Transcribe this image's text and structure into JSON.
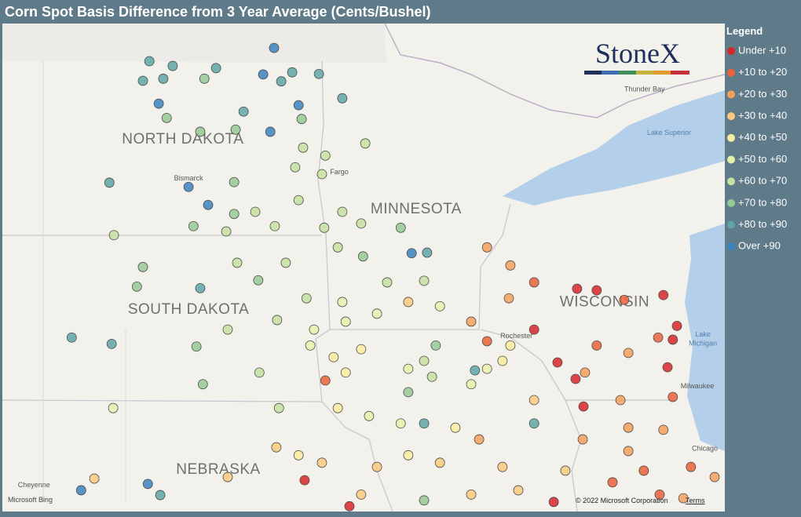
{
  "title": "Corn Spot Basis Difference from 3 Year Average (Cents/Bushel)",
  "legend": {
    "title": "Legend",
    "items": [
      {
        "label": "Under +10",
        "color": "#d7262a"
      },
      {
        "label": "+10 to +20",
        "color": "#e9623b"
      },
      {
        "label": "+20 to +30",
        "color": "#f4a05a"
      },
      {
        "label": "+30 to +40",
        "color": "#fbc97e"
      },
      {
        "label": "+40 to +50",
        "color": "#f8ec9e"
      },
      {
        "label": "+50 to +60",
        "color": "#e6f1aa"
      },
      {
        "label": "+60 to +70",
        "color": "#c4e1a0"
      },
      {
        "label": "+70 to +80",
        "color": "#94c994"
      },
      {
        "label": "+80 to +90",
        "color": "#5ea6a6"
      },
      {
        "label": "Over +90",
        "color": "#3b83be"
      }
    ]
  },
  "logo": "StoneX",
  "attribution": {
    "provider": "Microsoft Bing",
    "copyright": "© 2022 Microsoft Corporation",
    "terms": "Terms"
  },
  "map": {
    "lon_range": [
      -105.74,
      -86.57
    ],
    "lat_range": [
      49.9,
      40.7
    ],
    "labels": [
      {
        "text": "NORTH DAKOTA",
        "lon": -100.95,
        "lat": 47.64,
        "kind": "state"
      },
      {
        "text": "SOUTH DAKOTA",
        "lon": -100.8,
        "lat": 44.43,
        "kind": "state"
      },
      {
        "text": "MINNESOTA",
        "lon": -94.76,
        "lat": 46.32,
        "kind": "state"
      },
      {
        "text": "WISCONSIN",
        "lon": -89.76,
        "lat": 44.57,
        "kind": "state"
      },
      {
        "text": "NEBRASKA",
        "lon": -100.01,
        "lat": 41.41,
        "kind": "state"
      },
      {
        "text": "Bismarck",
        "lon": -100.8,
        "lat": 46.94,
        "kind": "city"
      },
      {
        "text": "Fargo",
        "lon": -96.8,
        "lat": 47.06,
        "kind": "city"
      },
      {
        "text": "Thunder Bay",
        "lon": -88.7,
        "lat": 48.62,
        "kind": "city"
      },
      {
        "text": "Rochester",
        "lon": -92.1,
        "lat": 43.97,
        "kind": "city"
      },
      {
        "text": "Milwaukee",
        "lon": -87.3,
        "lat": 43.02,
        "kind": "city"
      },
      {
        "text": "Chicago",
        "lon": -87.1,
        "lat": 41.85,
        "kind": "city"
      },
      {
        "text": "Cheyenne",
        "lon": -104.9,
        "lat": 41.16,
        "kind": "city"
      },
      {
        "text": "Lake Superior",
        "lon": -88.05,
        "lat": 47.8,
        "kind": "water"
      },
      {
        "text": "Lake",
        "lon": -87.15,
        "lat": 44.0,
        "kind": "water"
      },
      {
        "text": "Michigan",
        "lon": -87.15,
        "lat": 43.83,
        "kind": "water"
      }
    ],
    "points": [
      {
        "lon": -101.84,
        "lat": 49.19,
        "bin": 8
      },
      {
        "lon": -101.22,
        "lat": 49.1,
        "bin": 8
      },
      {
        "lon": -102.01,
        "lat": 48.82,
        "bin": 8
      },
      {
        "lon": -101.47,
        "lat": 48.86,
        "bin": 8
      },
      {
        "lon": -101.59,
        "lat": 48.39,
        "bin": 9
      },
      {
        "lon": -100.38,
        "lat": 48.86,
        "bin": 7
      },
      {
        "lon": -100.07,
        "lat": 49.06,
        "bin": 8
      },
      {
        "lon": -98.53,
        "lat": 49.44,
        "bin": 9
      },
      {
        "lon": -98.82,
        "lat": 48.94,
        "bin": 9
      },
      {
        "lon": -98.34,
        "lat": 48.81,
        "bin": 8
      },
      {
        "lon": -98.05,
        "lat": 48.98,
        "bin": 8
      },
      {
        "lon": -97.34,
        "lat": 48.95,
        "bin": 8
      },
      {
        "lon": -97.88,
        "lat": 48.36,
        "bin": 9
      },
      {
        "lon": -96.72,
        "lat": 48.49,
        "bin": 8
      },
      {
        "lon": -99.34,
        "lat": 48.24,
        "bin": 8
      },
      {
        "lon": -98.63,
        "lat": 47.86,
        "bin": 9
      },
      {
        "lon": -101.38,
        "lat": 48.12,
        "bin": 7
      },
      {
        "lon": -100.49,
        "lat": 47.86,
        "bin": 7
      },
      {
        "lon": -99.55,
        "lat": 47.9,
        "bin": 7
      },
      {
        "lon": -97.8,
        "lat": 48.1,
        "bin": 7
      },
      {
        "lon": -96.11,
        "lat": 47.64,
        "bin": 6
      },
      {
        "lon": -97.76,
        "lat": 47.56,
        "bin": 6
      },
      {
        "lon": -97.17,
        "lat": 47.41,
        "bin": 6
      },
      {
        "lon": -97.97,
        "lat": 47.19,
        "bin": 6
      },
      {
        "lon": -97.26,
        "lat": 47.06,
        "bin": 6
      },
      {
        "lon": -102.9,
        "lat": 46.9,
        "bin": 8
      },
      {
        "lon": -100.8,
        "lat": 46.82,
        "bin": 9
      },
      {
        "lon": -99.59,
        "lat": 46.91,
        "bin": 7
      },
      {
        "lon": -100.28,
        "lat": 46.48,
        "bin": 9
      },
      {
        "lon": -99.59,
        "lat": 46.31,
        "bin": 7
      },
      {
        "lon": -99.03,
        "lat": 46.35,
        "bin": 6
      },
      {
        "lon": -97.88,
        "lat": 46.57,
        "bin": 6
      },
      {
        "lon": -96.72,
        "lat": 46.35,
        "bin": 6
      },
      {
        "lon": -100.67,
        "lat": 46.08,
        "bin": 7
      },
      {
        "lon": -99.8,
        "lat": 45.98,
        "bin": 6
      },
      {
        "lon": -98.51,
        "lat": 46.08,
        "bin": 6
      },
      {
        "lon": -97.2,
        "lat": 46.05,
        "bin": 6
      },
      {
        "lon": -96.22,
        "lat": 46.13,
        "bin": 6
      },
      {
        "lon": -95.17,
        "lat": 46.05,
        "bin": 7
      },
      {
        "lon": -102.78,
        "lat": 45.91,
        "bin": 6
      },
      {
        "lon": -102.01,
        "lat": 45.31,
        "bin": 7
      },
      {
        "lon": -99.51,
        "lat": 45.39,
        "bin": 6
      },
      {
        "lon": -98.22,
        "lat": 45.39,
        "bin": 6
      },
      {
        "lon": -96.84,
        "lat": 45.68,
        "bin": 6
      },
      {
        "lon": -96.17,
        "lat": 45.51,
        "bin": 7
      },
      {
        "lon": -94.88,
        "lat": 45.57,
        "bin": 9
      },
      {
        "lon": -94.47,
        "lat": 45.58,
        "bin": 8
      },
      {
        "lon": -102.17,
        "lat": 44.94,
        "bin": 7
      },
      {
        "lon": -100.49,
        "lat": 44.91,
        "bin": 8
      },
      {
        "lon": -98.95,
        "lat": 45.06,
        "bin": 7
      },
      {
        "lon": -97.67,
        "lat": 44.72,
        "bin": 6
      },
      {
        "lon": -96.72,
        "lat": 44.65,
        "bin": 5
      },
      {
        "lon": -95.53,
        "lat": 45.02,
        "bin": 6
      },
      {
        "lon": -94.55,
        "lat": 45.05,
        "bin": 6
      },
      {
        "lon": -103.9,
        "lat": 43.98,
        "bin": 8
      },
      {
        "lon": -102.84,
        "lat": 43.86,
        "bin": 8
      },
      {
        "lon": -100.59,
        "lat": 43.81,
        "bin": 7
      },
      {
        "lon": -99.76,
        "lat": 44.13,
        "bin": 6
      },
      {
        "lon": -98.45,
        "lat": 44.31,
        "bin": 6
      },
      {
        "lon": -97.47,
        "lat": 44.13,
        "bin": 5
      },
      {
        "lon": -96.63,
        "lat": 44.28,
        "bin": 5
      },
      {
        "lon": -95.8,
        "lat": 44.43,
        "bin": 5
      },
      {
        "lon": -94.97,
        "lat": 44.65,
        "bin": 3
      },
      {
        "lon": -94.13,
        "lat": 44.57,
        "bin": 5
      },
      {
        "lon": -93.3,
        "lat": 44.28,
        "bin": 2
      },
      {
        "lon": -92.88,
        "lat": 43.91,
        "bin": 1
      },
      {
        "lon": -93.2,
        "lat": 43.36,
        "bin": 8
      },
      {
        "lon": -94.24,
        "lat": 43.83,
        "bin": 7
      },
      {
        "lon": -96.22,
        "lat": 43.76,
        "bin": 4
      },
      {
        "lon": -94.97,
        "lat": 43.39,
        "bin": 5
      },
      {
        "lon": -94.34,
        "lat": 43.24,
        "bin": 6
      },
      {
        "lon": -92.47,
        "lat": 43.54,
        "bin": 4
      },
      {
        "lon": -100.42,
        "lat": 43.1,
        "bin": 7
      },
      {
        "lon": -98.92,
        "lat": 43.32,
        "bin": 6
      },
      {
        "lon": -97.17,
        "lat": 43.17,
        "bin": 1
      },
      {
        "lon": -96.63,
        "lat": 43.32,
        "bin": 4
      },
      {
        "lon": -94.97,
        "lat": 42.95,
        "bin": 7
      },
      {
        "lon": -93.3,
        "lat": 43.1,
        "bin": 5
      },
      {
        "lon": -91.63,
        "lat": 42.8,
        "bin": 3
      },
      {
        "lon": -102.8,
        "lat": 42.65,
        "bin": 5
      },
      {
        "lon": -98.4,
        "lat": 42.65,
        "bin": 6
      },
      {
        "lon": -96.84,
        "lat": 42.65,
        "bin": 4
      },
      {
        "lon": -95.17,
        "lat": 42.36,
        "bin": 5
      },
      {
        "lon": -94.55,
        "lat": 42.36,
        "bin": 8
      },
      {
        "lon": -93.09,
        "lat": 42.06,
        "bin": 2
      },
      {
        "lon": -91.63,
        "lat": 42.36,
        "bin": 8
      },
      {
        "lon": -90.34,
        "lat": 42.06,
        "bin": 2
      },
      {
        "lon": -98.47,
        "lat": 41.91,
        "bin": 3
      },
      {
        "lon": -97.26,
        "lat": 41.62,
        "bin": 3
      },
      {
        "lon": -95.8,
        "lat": 41.54,
        "bin": 3
      },
      {
        "lon": -94.13,
        "lat": 41.62,
        "bin": 3
      },
      {
        "lon": -92.47,
        "lat": 41.54,
        "bin": 3
      },
      {
        "lon": -90.8,
        "lat": 41.47,
        "bin": 3
      },
      {
        "lon": -89.13,
        "lat": 41.84,
        "bin": 2
      },
      {
        "lon": -88.72,
        "lat": 41.47,
        "bin": 1
      },
      {
        "lon": -87.47,
        "lat": 41.54,
        "bin": 1
      },
      {
        "lon": -86.84,
        "lat": 41.35,
        "bin": 2
      },
      {
        "lon": -99.76,
        "lat": 41.35,
        "bin": 3
      },
      {
        "lon": -97.72,
        "lat": 41.29,
        "bin": 0
      },
      {
        "lon": -96.22,
        "lat": 41.02,
        "bin": 3
      },
      {
        "lon": -94.55,
        "lat": 40.91,
        "bin": 7
      },
      {
        "lon": -93.3,
        "lat": 41.02,
        "bin": 3
      },
      {
        "lon": -91.11,
        "lat": 40.88,
        "bin": 0
      },
      {
        "lon": -89.55,
        "lat": 41.25,
        "bin": 1
      },
      {
        "lon": -88.3,
        "lat": 41.02,
        "bin": 1
      },
      {
        "lon": -103.3,
        "lat": 41.32,
        "bin": 3
      },
      {
        "lon": -103.65,
        "lat": 41.1,
        "bin": 9
      },
      {
        "lon": -101.88,
        "lat": 41.22,
        "bin": 9
      },
      {
        "lon": -101.55,
        "lat": 41.01,
        "bin": 8
      },
      {
        "lon": -96.53,
        "lat": 40.8,
        "bin": 0
      },
      {
        "lon": -92.88,
        "lat": 45.68,
        "bin": 2
      },
      {
        "lon": -92.26,
        "lat": 45.34,
        "bin": 2
      },
      {
        "lon": -91.63,
        "lat": 45.02,
        "bin": 1
      },
      {
        "lon": -90.49,
        "lat": 44.9,
        "bin": 0
      },
      {
        "lon": -89.97,
        "lat": 44.87,
        "bin": 0
      },
      {
        "lon": -92.3,
        "lat": 44.72,
        "bin": 2
      },
      {
        "lon": -89.24,
        "lat": 44.69,
        "bin": 1
      },
      {
        "lon": -88.2,
        "lat": 44.78,
        "bin": 0
      },
      {
        "lon": -87.84,
        "lat": 44.2,
        "bin": 0
      },
      {
        "lon": -88.34,
        "lat": 43.98,
        "bin": 1
      },
      {
        "lon": -87.95,
        "lat": 43.94,
        "bin": 0
      },
      {
        "lon": -89.97,
        "lat": 43.83,
        "bin": 1
      },
      {
        "lon": -89.13,
        "lat": 43.69,
        "bin": 2
      },
      {
        "lon": -88.09,
        "lat": 43.42,
        "bin": 0
      },
      {
        "lon": -91.63,
        "lat": 44.13,
        "bin": 0
      },
      {
        "lon": -91.01,
        "lat": 43.51,
        "bin": 0
      },
      {
        "lon": -90.28,
        "lat": 43.32,
        "bin": 2
      },
      {
        "lon": -90.53,
        "lat": 43.2,
        "bin": 0
      },
      {
        "lon": -89.34,
        "lat": 42.8,
        "bin": 2
      },
      {
        "lon": -87.95,
        "lat": 42.86,
        "bin": 1
      },
      {
        "lon": -90.32,
        "lat": 42.68,
        "bin": 0
      },
      {
        "lon": -89.13,
        "lat": 42.28,
        "bin": 2
      },
      {
        "lon": -88.2,
        "lat": 42.24,
        "bin": 2
      },
      {
        "lon": -92.88,
        "lat": 43.39,
        "bin": 5
      },
      {
        "lon": -92.26,
        "lat": 43.83,
        "bin": 4
      },
      {
        "lon": -94.55,
        "lat": 43.54,
        "bin": 6
      },
      {
        "lon": -96.95,
        "lat": 43.61,
        "bin": 4
      },
      {
        "lon": -97.57,
        "lat": 43.83,
        "bin": 5
      },
      {
        "lon": -96.01,
        "lat": 42.5,
        "bin": 5
      },
      {
        "lon": -93.72,
        "lat": 42.28,
        "bin": 4
      },
      {
        "lon": -97.88,
        "lat": 41.76,
        "bin": 4
      },
      {
        "lon": -94.97,
        "lat": 41.76,
        "bin": 4
      },
      {
        "lon": -92.05,
        "lat": 41.1,
        "bin": 3
      },
      {
        "lon": -87.67,
        "lat": 40.95,
        "bin": 2
      }
    ]
  }
}
